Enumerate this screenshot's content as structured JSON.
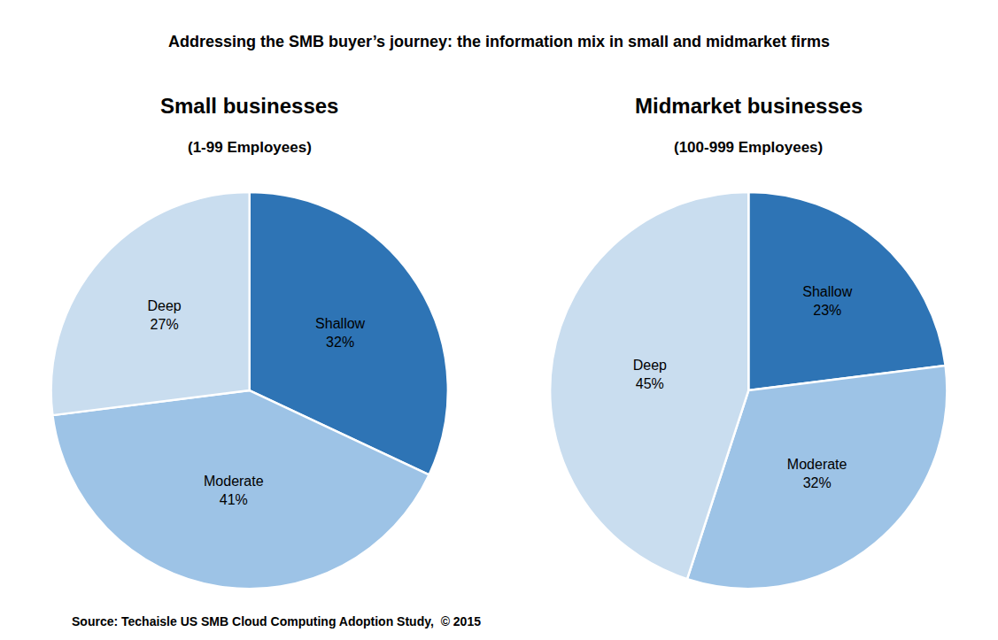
{
  "title": "Addressing the SMB buyer’s journey: the information mix in small and midmarket firms",
  "chart_data": [
    {
      "type": "pie",
      "title": "Small businesses",
      "subtitle": "(1-99 Employees)",
      "categories": [
        "Shallow",
        "Moderate",
        "Deep"
      ],
      "values": [
        32,
        41,
        27
      ],
      "value_labels": [
        "Shallow\n32%",
        "Moderate\n41%",
        "Deep\n27%"
      ],
      "colors": [
        "#2E74B5",
        "#9DC3E6",
        "#C9DDEF"
      ],
      "data_labels": true
    },
    {
      "type": "pie",
      "title": "Midmarket businesses",
      "subtitle": "(100-999 Employees)",
      "categories": [
        "Shallow",
        "Moderate",
        "Deep"
      ],
      "values": [
        23,
        32,
        45
      ],
      "value_labels": [
        "Shallow\n23%",
        "Moderate\n32%",
        "Deep\n45%"
      ],
      "colors": [
        "#2E74B5",
        "#9DC3E6",
        "#C9DDEF"
      ],
      "data_labels": true
    }
  ],
  "annotations": [
    "Source: Techaisle US SMB Cloud Computing Adoption Study,  © 2015"
  ]
}
